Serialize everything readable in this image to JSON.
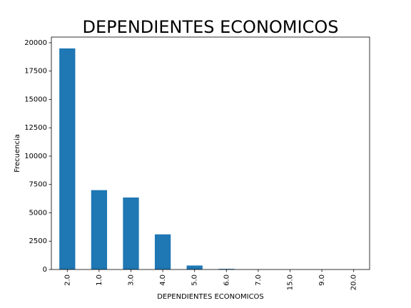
{
  "chart_data": {
    "type": "bar",
    "title": "DEPENDIENTES ECONOMICOS",
    "xlabel": "DEPENDIENTES ECONOMICOS",
    "ylabel": "Frecuencia",
    "categories": [
      "2.0",
      "1.0",
      "3.0",
      "4.0",
      "5.0",
      "6.0",
      "7.0",
      "15.0",
      "9.0",
      "20.0"
    ],
    "values": [
      19500,
      7000,
      6350,
      3100,
      350,
      60,
      8,
      3,
      2,
      1
    ],
    "ylim": [
      0,
      20500
    ],
    "yticks": [
      0,
      2500,
      5000,
      7500,
      10000,
      12500,
      15000,
      17500,
      20000
    ],
    "ytick_labels": [
      "0",
      "2500",
      "5000",
      "7500",
      "10000",
      "12500",
      "15000",
      "17500",
      "20000"
    ],
    "grid": false,
    "legend": false,
    "bar_color": "#1f77b4"
  }
}
